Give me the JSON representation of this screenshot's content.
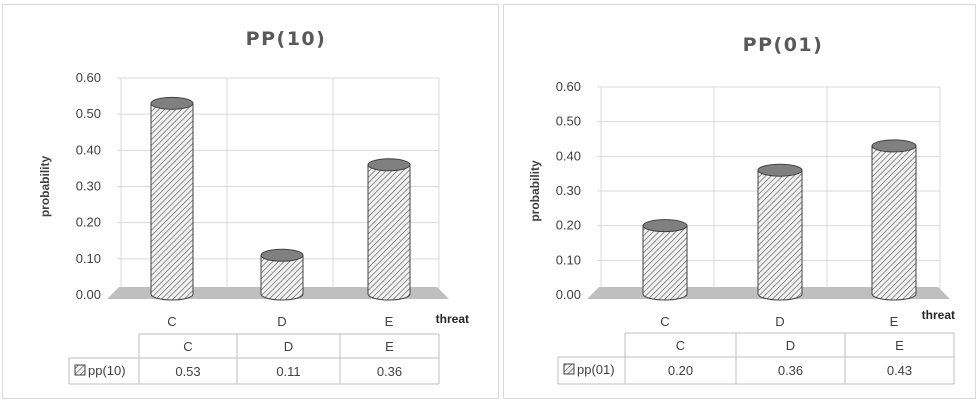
{
  "chart_data": [
    {
      "type": "bar",
      "title": "PP(10)",
      "xlabel": "threat",
      "ylabel": "probability",
      "categories": [
        "C",
        "D",
        "E"
      ],
      "ylim": [
        0,
        0.6
      ],
      "yticks": [
        "0.00",
        "0.10",
        "0.20",
        "0.30",
        "0.40",
        "0.50",
        "0.60"
      ],
      "grid": true,
      "series": [
        {
          "name": "pp(10)",
          "values": [
            0.53,
            0.11,
            0.36
          ],
          "labels": [
            "0.53",
            "0.11",
            "0.36"
          ]
        }
      ]
    },
    {
      "type": "bar",
      "title": "PP(01)",
      "xlabel": "threat",
      "ylabel": "probability",
      "categories": [
        "C",
        "D",
        "E"
      ],
      "ylim": [
        0,
        0.6
      ],
      "yticks": [
        "0.00",
        "0.10",
        "0.20",
        "0.30",
        "0.40",
        "0.50",
        "0.60"
      ],
      "grid": true,
      "series": [
        {
          "name": "pp(01)",
          "values": [
            0.2,
            0.36,
            0.43
          ],
          "labels": [
            "0.20",
            "0.36",
            "0.43"
          ]
        }
      ]
    }
  ],
  "colors": {
    "bar_fill": "#f2f2f2",
    "bar_hatch": "#595959",
    "bar_top": "#808080",
    "floor": "#bfbfbf",
    "grid": "#d9d9d9"
  }
}
